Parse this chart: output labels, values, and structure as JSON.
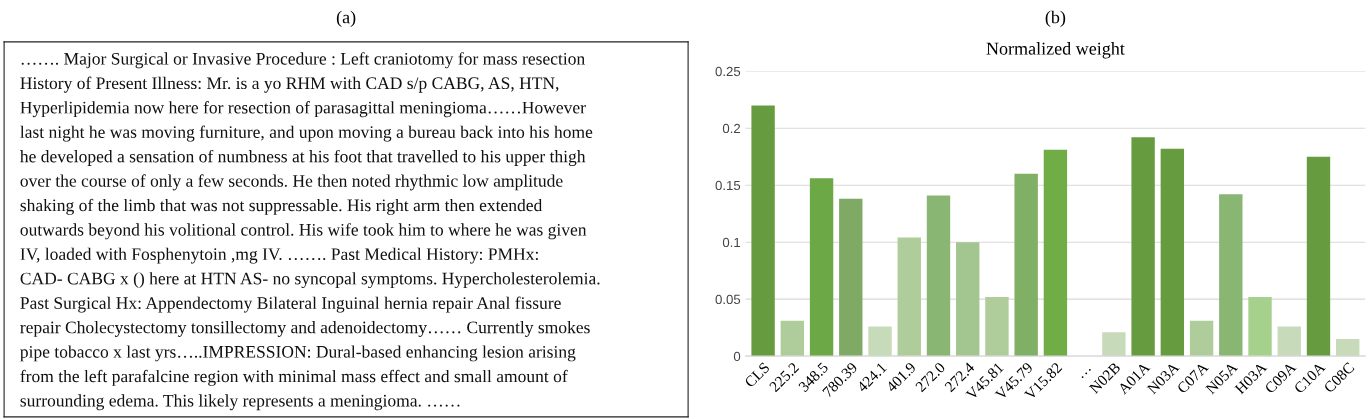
{
  "chart_data": [
    {
      "type": "other",
      "title": "(a)",
      "annotations": [
        "……. Major Surgical or Invasive Procedure : Left craniotomy for mass resection",
        "History of Present Illness: Mr. is a yo RHM with CAD s/p CABG, AS, HTN,",
        "Hyperlipidemia now here for resection of parasagittal meningioma……However",
        "last night he was moving furniture, and upon moving a bureau back into his home",
        "he developed a sensation of numbness at his foot that travelled to his upper thigh",
        "over the course of only a few seconds. He then noted rhythmic low amplitude",
        "shaking of the limb that was not suppressable. His right arm then extended",
        "outwards beyond his volitional control. His wife took him to where he was given",
        "IV, loaded with Fosphenytoin ,mg IV. ……. Past Medical History: PMHx:",
        "CAD- CABG x () here at HTN AS- no syncopal symptoms. Hypercholesterolemia.",
        "Past Surgical Hx: Appendectomy Bilateral Inguinal hernia repair Anal fissure",
        "repair Cholecystectomy tonsillectomy and adenoidectomy…… Currently smokes",
        "pipe tobacco x last yrs…..IMPRESSION: Dural-based enhancing lesion arising",
        "from the left parafalcine region with minimal mass effect and small amount of",
        "surrounding edema. This likely represents a meningioma. ……"
      ]
    },
    {
      "type": "bar",
      "title": "(b)",
      "subtitle": "Normalized weight",
      "categories": [
        "CLS",
        "225.2",
        "348.5",
        "780.39",
        "424.1",
        "401.9",
        "272.0",
        "272.4",
        "V45.81",
        "V45.79",
        "V15.82",
        "…",
        "N02B",
        "A01A",
        "N03A",
        "C07A",
        "N05A",
        "H03A",
        "C09A",
        "C10A",
        "C08C"
      ],
      "values": [
        0.22,
        0.031,
        0.156,
        0.138,
        0.026,
        0.104,
        0.141,
        0.1,
        0.052,
        0.16,
        0.181,
        null,
        0.021,
        0.192,
        0.182,
        0.031,
        0.142,
        0.052,
        0.026,
        0.175,
        0.015
      ],
      "colors": [
        "#669c3f",
        "#aecd9a",
        "#6ca946",
        "#7faa66",
        "#c7dbbb",
        "#aecd9a",
        "#8ab673",
        "#a3c690",
        "#aecd9a",
        "#80b065",
        "#70ad47",
        "#ffffff",
        "#c7dbbb",
        "#669c3f",
        "#669c3f",
        "#aecd9a",
        "#8ab673",
        "#a6d18c",
        "#c7dbbb",
        "#669c3f",
        "#c7dbbb"
      ],
      "ylim": [
        0,
        0.25
      ],
      "yticks": [
        0,
        0.05,
        0.1,
        0.15,
        0.2,
        0.25
      ],
      "grid": "y"
    }
  ]
}
